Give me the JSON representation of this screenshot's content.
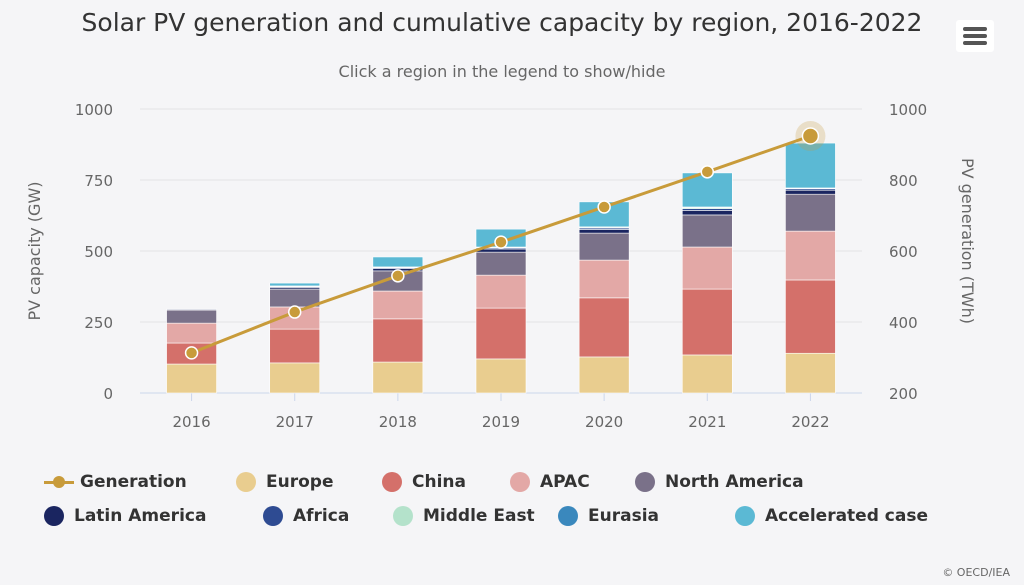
{
  "title": "Solar PV generation and cumulative capacity by region, 2016-2022",
  "subtitle": "Click a region in the legend to show/hide",
  "menu_icon": "hamburger-menu-icon",
  "credit": "© OECD/IEA",
  "chart_data": {
    "type": "bar",
    "stacked": true,
    "categories": [
      "2016",
      "2017",
      "2018",
      "2019",
      "2020",
      "2021",
      "2022"
    ],
    "ylabel": "PV capacity (GW)",
    "y2label": "PV generation (TWh)",
    "ylim": [
      0,
      1000
    ],
    "yticks": [
      "0",
      "250",
      "500",
      "750",
      "1000"
    ],
    "y2lim": [
      200,
      1000
    ],
    "y2ticks": [
      "200",
      "400",
      "600",
      "800",
      "1000"
    ],
    "grid": true,
    "legend_placement": "bottom",
    "series": [
      {
        "name": "Europe",
        "color": "#e9cd8f",
        "values": [
          102,
          106,
          109,
          120,
          127,
          134,
          140
        ]
      },
      {
        "name": "China",
        "color": "#d4706a",
        "values": [
          74,
          119,
          152,
          179,
          208,
          232,
          258
        ]
      },
      {
        "name": "APAC",
        "color": "#e3a8a6",
        "values": [
          70,
          78,
          98,
          116,
          133,
          148,
          172
        ]
      },
      {
        "name": "North America",
        "color": "#7a7189",
        "values": [
          46,
          63,
          71,
          81,
          95,
          113,
          130
        ]
      },
      {
        "name": "Latin America",
        "color": "#1a2560",
        "values": [
          3,
          6,
          8,
          11,
          13,
          16,
          14
        ]
      },
      {
        "name": "Africa",
        "color": "#2e4b92",
        "values": [
          1,
          2,
          3,
          4,
          5,
          6,
          5
        ]
      },
      {
        "name": "Middle East",
        "color": "#b4e2cb",
        "values": [
          0,
          1,
          2,
          2,
          3,
          4,
          2
        ]
      },
      {
        "name": "Eurasia",
        "color": "#3a88bd",
        "values": [
          0,
          2,
          1,
          1,
          1,
          2,
          1
        ]
      },
      {
        "name": "Accelerated case",
        "color": "#5bb9d4",
        "values": [
          0,
          10,
          35,
          63,
          88,
          120,
          158
        ]
      }
    ],
    "line_series": {
      "name": "Generation",
      "color": "#c89b3a",
      "axis": "right",
      "values": [
        313,
        428,
        530,
        625,
        724,
        823,
        924
      ]
    }
  }
}
